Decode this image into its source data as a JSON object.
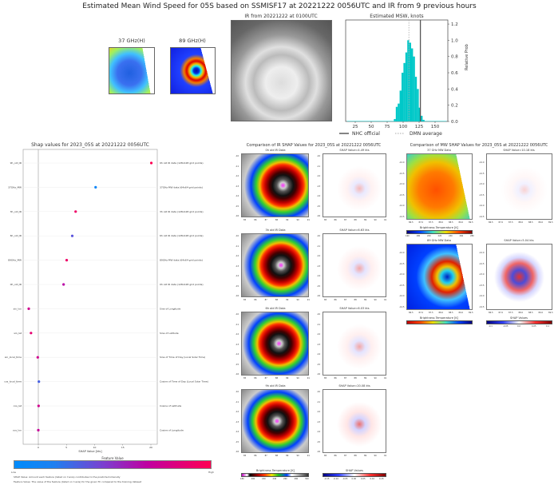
{
  "title": "Estimated Mean Wind Speed for 05S based on SSMISF17 at 20221222 0056UTC and IR from 9 previous hours",
  "mw_thumbs": [
    {
      "label": "37 GHz(H)"
    },
    {
      "label": "89 GHz(H)"
    }
  ],
  "ir_image": {
    "title": "IR from 20221222 at 0100UTC"
  },
  "colors": {
    "cyan": "#00c8c8",
    "shap_low": "#008bfb",
    "shap_high": "#ff0052",
    "pos": "#d00000",
    "neg": "#0000c0"
  },
  "chart_data": [
    {
      "type": "bar",
      "title": "Estimated MSW, knots",
      "ylabel": "Relative Prob",
      "xlim": [
        10,
        170
      ],
      "ylim": [
        0,
        1.25
      ],
      "xticks": [
        "25",
        "50",
        "75",
        "100",
        "125",
        "150"
      ],
      "yticks": [
        "0.0",
        "0.2",
        "0.4",
        "0.6",
        "0.8",
        "1.0",
        "1.2"
      ],
      "bin_centers": [
        87,
        90,
        93,
        96,
        99,
        102,
        105,
        108,
        111,
        114,
        117,
        120,
        123,
        126,
        129,
        132
      ],
      "values": [
        0.03,
        0.18,
        0.22,
        0.38,
        0.6,
        0.72,
        0.85,
        1.0,
        0.97,
        0.9,
        0.8,
        0.55,
        0.4,
        0.17,
        0.07,
        0.02
      ],
      "nhc_official": 127,
      "dmn_average": 109,
      "legend": [
        "NHC official",
        "DMN average"
      ],
      "legend_position": "bottom"
    },
    {
      "type": "scatter",
      "title": "Shap values for 2023_05S at 20221222 0056UTC",
      "xlabel": "SHAP Value [kts]",
      "xlim": [
        -3,
        21
      ],
      "xticks": [
        "0",
        "5",
        "10",
        "15",
        "20"
      ],
      "features": [
        {
          "name": "9h_old_IR",
          "desc": "9h old IR data (128x128 grid points)",
          "shap": 20.08,
          "feature_value": 1.0
        },
        {
          "name": "37GHz_MW",
          "desc": "37GHz MW data (64x64 grid points)",
          "shap": 10.18,
          "feature_value": 0.05
        },
        {
          "name": "3h_old_IR",
          "desc": "3h old IR data (128x128 grid points)",
          "shap": 6.63,
          "feature_value": 0.95
        },
        {
          "name": "6h_old_IR",
          "desc": "6h old IR data (128x128 grid points)",
          "shap": 6.03,
          "feature_value": 0.45
        },
        {
          "name": "89GHz_MW",
          "desc": "89GHz MW data (64x64 grid points)",
          "shap": 5.04,
          "feature_value": 0.95
        },
        {
          "name": "0h_old_IR",
          "desc": "0h old IR data (128x128 grid points)",
          "shap": 4.49,
          "feature_value": 0.78
        },
        {
          "name": "sin_lon",
          "desc": "Sine of Longitude",
          "shap": -1.7,
          "feature_value": 0.85
        },
        {
          "name": "sin_lat",
          "desc": "Sine of Latitude",
          "shap": -1.3,
          "feature_value": 0.92
        },
        {
          "name": "sin_local_time",
          "desc": "Sine of Time of Day (Local Solar Time)",
          "shap": -0.1,
          "feature_value": 0.85
        },
        {
          "name": "cos_local_time",
          "desc": "Cosine of Time of Day (Local Solar Time)",
          "shap": 0.1,
          "feature_value": 0.35
        },
        {
          "name": "cos_lat",
          "desc": "Cosine of Latitude",
          "shap": 0.05,
          "feature_value": 0.85
        },
        {
          "name": "cos_lon",
          "desc": "Cosine of Longitude",
          "shap": 0.0,
          "feature_value": 0.82
        }
      ],
      "colorbar": {
        "title": "Feature Value",
        "low": "Low",
        "high": "High"
      },
      "notes": [
        "SHAP Value: Amount each feature (listed on Y-axis) contributes to the predicted intensity",
        "Feature Value: The value of the feature (listed on Y-axis) for the given TC compared to the training dataset"
      ]
    }
  ],
  "ir_comparison": {
    "title": "Comparison of IR SHAP Values for 2023_05S at 20221222 0056UTC",
    "rows": [
      {
        "data_title": "0h old IR Data",
        "shap_title": "SHAP Value=4.49 kts"
      },
      {
        "data_title": "3h old IR Data",
        "shap_title": "SHAP Value=6.63 kts"
      },
      {
        "data_title": "6h old IR Data",
        "shap_title": "SHAP Value=6.03 kts"
      },
      {
        "data_title": "9h old IR Data",
        "shap_title": "SHAP Value=20.08 kts"
      }
    ],
    "xticks": [
      "85",
      "86",
      "87",
      "88",
      "89",
      "90",
      "91"
    ],
    "yticks": [
      "-10",
      "-11",
      "-12",
      "-13",
      "-14",
      "-15",
      "-16"
    ],
    "bt_colorbar": {
      "label": "Brightness Temperature [K]",
      "ticks": [
        "180",
        "200",
        "220",
        "240",
        "260",
        "280",
        "300"
      ]
    },
    "shap_colorbar": {
      "label": "SHAP Values",
      "ticks": [
        "-0.15",
        "-0.10",
        "-0.05",
        "0.00",
        "0.05",
        "0.10",
        "0.15"
      ]
    }
  },
  "mw_comparison": {
    "title": "Comparison of MW SHAP Values for 2023_05S at 20221222 0056UTC",
    "rows": [
      {
        "data_title": "37 GHz MW Data",
        "shap_title": "SHAP Value=10.18 kts"
      },
      {
        "data_title": "89 GHz MW Data",
        "shap_title": "SHAP Value=5.04 kts"
      }
    ],
    "xticks": [
      "86.5",
      "87.0",
      "87.5",
      "88.0",
      "88.5",
      "89.0",
      "89.5"
    ],
    "yticks": [
      "-12.0",
      "-12.5",
      "-13.0",
      "-13.5",
      "-14.0",
      "-14.5"
    ],
    "bt_colorbar": {
      "label": "Brightness Temperature [K]",
      "ticks": [
        "160",
        "180",
        "200",
        "220",
        "240",
        "260",
        "280"
      ]
    },
    "shap_colorbar": {
      "label": "SHAP Values",
      "ticks": [
        "-0.1",
        "-0.05",
        "0.0",
        "0.05",
        "0.1"
      ]
    }
  }
}
